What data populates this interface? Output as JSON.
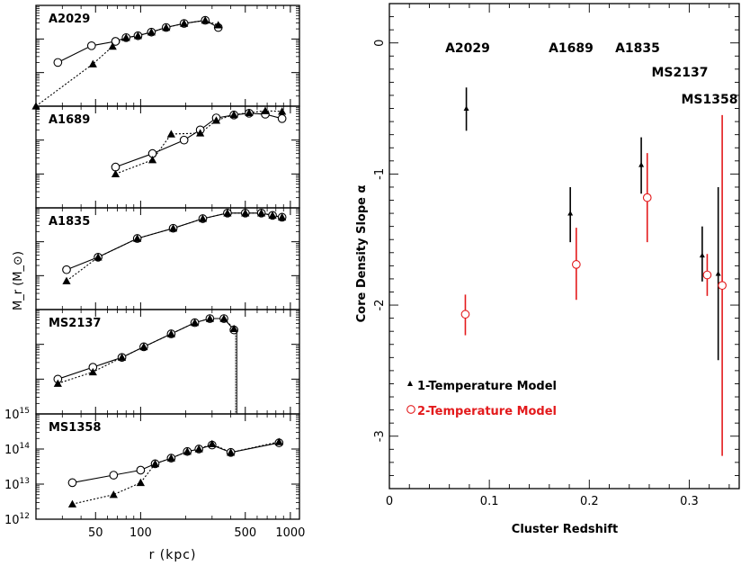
{
  "chart_data": [
    {
      "type": "scatter",
      "title": "",
      "xlabel": "r (kpc)",
      "ylabel": "M_r (M_⊙)",
      "x_scale": "log",
      "y_scale": "log",
      "xlim": [
        20,
        1150
      ],
      "xticks": [
        "50",
        "100",
        "500",
        "1000"
      ],
      "legend": null,
      "panels": [
        {
          "name": "A2029",
          "ylim": [
            1000000000000.0,
            1000000000000000.0
          ],
          "open": [
            [
              28,
              20000000000000.0
            ],
            [
              47,
              63000000000000.0
            ],
            [
              68,
              85000000000000.0
            ],
            [
              80,
              110000000000000.0
            ],
            [
              96,
              125000000000000.0
            ],
            [
              118,
              160000000000000.0
            ],
            [
              148,
              220000000000000.0
            ],
            [
              195,
              290000000000000.0
            ],
            [
              270,
              360000000000000.0
            ],
            [
              330,
              220000000000000.0
            ]
          ],
          "filled": [
            [
              20,
              1000000000000.0
            ],
            [
              48,
              18000000000000.0
            ],
            [
              65,
              60000000000000.0
            ],
            [
              80,
              110000000000000.0
            ],
            [
              96,
              125000000000000.0
            ],
            [
              118,
              160000000000000.0
            ],
            [
              148,
              220000000000000.0
            ],
            [
              195,
              290000000000000.0
            ],
            [
              270,
              360000000000000.0
            ],
            [
              330,
              260000000000000.0
            ]
          ]
        },
        {
          "name": "A1689",
          "ylim": [
            1000000000000.0,
            1000000000000000.0
          ],
          "open": [
            [
              68,
              16000000000000.0
            ],
            [
              120,
              40000000000000.0
            ],
            [
              195,
              100000000000000.0
            ],
            [
              250,
              200000000000000.0
            ],
            [
              320,
              450000000000000.0
            ],
            [
              420,
              550000000000000.0
            ],
            [
              530,
              620000000000000.0
            ],
            [
              680,
              580000000000000.0
            ],
            [
              880,
              430000000000000.0
            ]
          ],
          "filled": [
            [
              68,
              10000000000000.0
            ],
            [
              120,
              26000000000000.0
            ],
            [
              160,
              150000000000000.0
            ],
            [
              250,
              160000000000000.0
            ],
            [
              320,
              380000000000000.0
            ],
            [
              420,
              560000000000000.0
            ],
            [
              530,
              640000000000000.0
            ],
            [
              680,
              730000000000000.0
            ],
            [
              880,
              700000000000000.0
            ]
          ]
        },
        {
          "name": "A1835",
          "ylim": [
            1000000000000.0,
            1000000000000000.0
          ],
          "open": [
            [
              32,
              15000000000000.0
            ],
            [
              52,
              35000000000000.0
            ],
            [
              95,
              125000000000000.0
            ],
            [
              165,
              250000000000000.0
            ],
            [
              260,
              480000000000000.0
            ],
            [
              380,
              700000000000000.0
            ],
            [
              500,
              700000000000000.0
            ],
            [
              640,
              700000000000000.0
            ],
            [
              760,
              600000000000000.0
            ],
            [
              880,
              530000000000000.0
            ]
          ],
          "filled": [
            [
              32,
              7000000000000.0
            ],
            [
              52,
              35000000000000.0
            ],
            [
              95,
              125000000000000.0
            ],
            [
              165,
              250000000000000.0
            ],
            [
              260,
              480000000000000.0
            ],
            [
              380,
              700000000000000.0
            ],
            [
              500,
              700000000000000.0
            ],
            [
              640,
              700000000000000.0
            ],
            [
              760,
              600000000000000.0
            ],
            [
              880,
              530000000000000.0
            ]
          ]
        },
        {
          "name": "MS2137",
          "ylim": [
            1000000000000.0,
            1000000000000000.0
          ],
          "open": [
            [
              28,
              10000000000000.0
            ],
            [
              48,
              22000000000000.0
            ],
            [
              75,
              42000000000000.0
            ],
            [
              105,
              85000000000000.0
            ],
            [
              160,
              200000000000000.0
            ],
            [
              230,
              420000000000000.0
            ],
            [
              290,
              550000000000000.0
            ],
            [
              360,
              550000000000000.0
            ],
            [
              420,
              260000000000000.0
            ]
          ],
          "filled": [
            [
              28,
              7500000000000.0
            ],
            [
              48,
              16000000000000.0
            ],
            [
              75,
              42000000000000.0
            ],
            [
              105,
              85000000000000.0
            ],
            [
              160,
              200000000000000.0
            ],
            [
              230,
              420000000000000.0
            ],
            [
              290,
              550000000000000.0
            ],
            [
              360,
              550000000000000.0
            ],
            [
              420,
              280000000000000.0
            ]
          ],
          "drop_r": 432
        },
        {
          "name": "MS1358",
          "ylim": [
            1000000000000.0,
            1000000000000000.0
          ],
          "open": [
            [
              35,
              11000000000000.0
            ],
            [
              66,
              18000000000000.0
            ],
            [
              100,
              25000000000000.0
            ],
            [
              125,
              38000000000000.0
            ],
            [
              160,
              55000000000000.0
            ],
            [
              205,
              85000000000000.0
            ],
            [
              245,
              100000000000000.0
            ],
            [
              300,
              130000000000000.0
            ],
            [
              400,
              80000000000000.0
            ],
            [
              840,
              150000000000000.0
            ]
          ],
          "filled": [
            [
              35,
              2700000000000.0
            ],
            [
              66,
              5000000000000.0
            ],
            [
              100,
              11000000000000.0
            ],
            [
              125,
              38000000000000.0
            ],
            [
              160,
              55000000000000.0
            ],
            [
              205,
              85000000000000.0
            ],
            [
              245,
              100000000000000.0
            ],
            [
              300,
              140000000000000.0
            ],
            [
              400,
              80000000000000.0
            ],
            [
              840,
              160000000000000.0
            ]
          ],
          "ytick_labels": [
            "10^15",
            "10^14",
            "10^13",
            "10^12"
          ]
        }
      ]
    },
    {
      "type": "scatter",
      "title": "",
      "xlabel": "Cluster Redshift",
      "ylabel": "Core Density Slope α",
      "xlim": [
        0,
        0.35
      ],
      "ylim": [
        -3.4,
        0.3
      ],
      "xticks": [
        0,
        0.1,
        0.2,
        0.3
      ],
      "yticks": [
        0,
        -1,
        -2,
        -3
      ],
      "cluster_labels": [
        {
          "name": "A2029",
          "z": 0.077
        },
        {
          "name": "A1689",
          "z": 0.183
        },
        {
          "name": "A1835",
          "z": 0.252
        },
        {
          "name": "MS2137",
          "z": 0.313
        },
        {
          "name": "MS1358",
          "z": 0.328
        }
      ],
      "legend_position": "lower-left",
      "series": [
        {
          "name": "1-Temperature Model",
          "color": "#000000",
          "marker": "filled-triangle",
          "points": [
            {
              "x": 0.077,
              "y": -0.5,
              "lo": -0.67,
              "hi": -0.34
            },
            {
              "x": 0.181,
              "y": -1.3,
              "lo": -1.52,
              "hi": -1.1
            },
            {
              "x": 0.252,
              "y": -0.93,
              "lo": -1.15,
              "hi": -0.72
            },
            {
              "x": 0.313,
              "y": -1.62,
              "lo": -1.82,
              "hi": -1.4
            },
            {
              "x": 0.329,
              "y": -1.76,
              "lo": -2.42,
              "hi": -1.1
            }
          ]
        },
        {
          "name": "2-Temperature Model",
          "color": "#e31a1c",
          "marker": "open-circle",
          "points": [
            {
              "x": 0.076,
              "y": -2.07,
              "lo": -2.23,
              "hi": -1.92
            },
            {
              "x": 0.187,
              "y": -1.69,
              "lo": -1.96,
              "hi": -1.41
            },
            {
              "x": 0.258,
              "y": -1.18,
              "lo": -1.52,
              "hi": -0.84
            },
            {
              "x": 0.318,
              "y": -1.77,
              "lo": -1.93,
              "hi": -1.61
            },
            {
              "x": 0.333,
              "y": -1.85,
              "lo": -3.15,
              "hi": -0.55
            }
          ]
        }
      ]
    }
  ]
}
